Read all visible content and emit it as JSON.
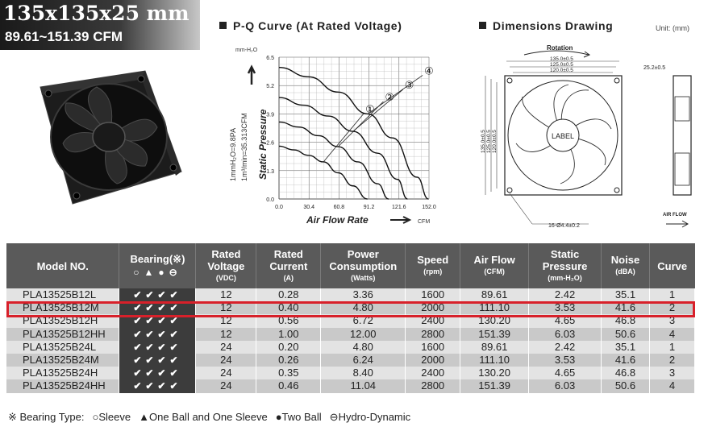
{
  "header": {
    "size": "135x135x25 mm",
    "airflow_range": "89.61~151.39 CFM"
  },
  "pq_section": {
    "title": "P-Q Curve (At Rated Voltage)",
    "y_unit": "mm-H₂O",
    "x_unit": "CFM",
    "y_axis_label": "Static Pressure",
    "x_axis_label": "Air Flow Rate",
    "conversion_1": "1mmH₂O=9.8PA",
    "conversion_2": "1m³/min=35.313CFM",
    "y_ticks": [
      "0.0",
      "1.3",
      "2.6",
      "3.9",
      "5.2",
      "6.5"
    ],
    "x_ticks": [
      "0.0",
      "30.4",
      "60.8",
      "91.2",
      "121.6",
      "152.0"
    ],
    "curve_markers": [
      "①",
      "②",
      "③",
      "④"
    ]
  },
  "chart_data": {
    "type": "line",
    "title": "P-Q Curve (At Rated Voltage)",
    "xlabel": "Air Flow Rate",
    "ylabel": "Static Pressure",
    "xlim": [
      0,
      152
    ],
    "ylim": [
      0,
      6.5
    ],
    "grid": true,
    "series": [
      {
        "name": "1",
        "x": [
          0,
          15,
          30,
          45,
          60,
          75,
          89.61
        ],
        "y": [
          2.42,
          2.25,
          2.0,
          1.7,
          1.2,
          0.6,
          0
        ]
      },
      {
        "name": "2",
        "x": [
          0,
          20,
          40,
          60,
          80,
          100,
          111.1
        ],
        "y": [
          3.53,
          3.3,
          2.9,
          2.4,
          1.7,
          0.7,
          0
        ]
      },
      {
        "name": "3",
        "x": [
          0,
          25,
          50,
          75,
          100,
          120,
          130.2
        ],
        "y": [
          4.65,
          4.3,
          3.8,
          3.1,
          2.1,
          0.9,
          0
        ]
      },
      {
        "name": "4",
        "x": [
          0,
          30,
          60,
          90,
          115,
          140,
          151.39
        ],
        "y": [
          6.03,
          5.6,
          4.9,
          3.9,
          2.8,
          1.0,
          0
        ]
      }
    ]
  },
  "dims_section": {
    "title": "Dimensions Drawing",
    "unit": "Unit: (mm)",
    "rotation": "Rotation",
    "dim_135": "135.0±0.5",
    "dim_125": "125.0±0.5",
    "dim_120": "120.0±0.5",
    "depth": "25.2±0.5",
    "hole": "16-Ø4.4±0.2",
    "label": "LABEL",
    "airflow": "AIR FLOW"
  },
  "table": {
    "headers": {
      "model": "Model NO.",
      "bearing": "Bearing(※)",
      "bearing_icons": "○▲●⊖",
      "voltage": "Rated Voltage",
      "voltage_unit": "(VDC)",
      "current": "Rated Current",
      "current_unit": "(A)",
      "power": "Power Consumption",
      "power_unit": "(Watts)",
      "speed": "Speed",
      "speed_unit": "(rpm)",
      "airflow": "Air Flow",
      "airflow_unit": "(CFM)",
      "pressure": "Static Pressure",
      "pressure_unit": "(mm-H₂O)",
      "noise": "Noise",
      "noise_unit": "(dBA)",
      "curve": "Curve"
    },
    "rows": [
      {
        "model": "PLA13525B12L",
        "bearing": "✔✔✔✔",
        "voltage": "12",
        "current": "0.28",
        "power": "3.36",
        "speed": "1600",
        "airflow": "89.61",
        "pressure": "2.42",
        "noise": "35.1",
        "curve": "1"
      },
      {
        "model": "PLA13525B12M",
        "bearing": "✔✔✔✔",
        "voltage": "12",
        "current": "0.40",
        "power": "4.80",
        "speed": "2000",
        "airflow": "111.10",
        "pressure": "3.53",
        "noise": "41.6",
        "curve": "2"
      },
      {
        "model": "PLA13525B12H",
        "bearing": "✔✔✔✔",
        "voltage": "12",
        "current": "0.56",
        "power": "6.72",
        "speed": "2400",
        "airflow": "130.20",
        "pressure": "4.65",
        "noise": "46.8",
        "curve": "3"
      },
      {
        "model": "PLA13525B12HH",
        "bearing": "✔✔✔✔",
        "voltage": "12",
        "current": "1.00",
        "power": "12.00",
        "speed": "2800",
        "airflow": "151.39",
        "pressure": "6.03",
        "noise": "50.6",
        "curve": "4"
      },
      {
        "model": "PLA13525B24L",
        "bearing": "✔✔✔✔",
        "voltage": "24",
        "current": "0.20",
        "power": "4.80",
        "speed": "1600",
        "airflow": "89.61",
        "pressure": "2.42",
        "noise": "35.1",
        "curve": "1"
      },
      {
        "model": "PLA13525B24M",
        "bearing": "✔✔✔✔",
        "voltage": "24",
        "current": "0.26",
        "power": "6.24",
        "speed": "2000",
        "airflow": "111.10",
        "pressure": "3.53",
        "noise": "41.6",
        "curve": "2"
      },
      {
        "model": "PLA13525B24H",
        "bearing": "✔✔✔✔",
        "voltage": "24",
        "current": "0.35",
        "power": "8.40",
        "speed": "2400",
        "airflow": "130.20",
        "pressure": "4.65",
        "noise": "46.8",
        "curve": "3"
      },
      {
        "model": "PLA13525B24HH",
        "bearing": "✔✔✔✔",
        "voltage": "24",
        "current": "0.46",
        "power": "11.04",
        "speed": "2800",
        "airflow": "151.39",
        "pressure": "6.03",
        "noise": "50.6",
        "curve": "4"
      }
    ]
  },
  "legend": {
    "prefix": "※ Bearing Type:",
    "sleeve": "○Sleeve",
    "one_ball": "▲One Ball and One Sleeve",
    "two_ball": "●Two Ball",
    "hydro": "⊖Hydro-Dynamic"
  }
}
